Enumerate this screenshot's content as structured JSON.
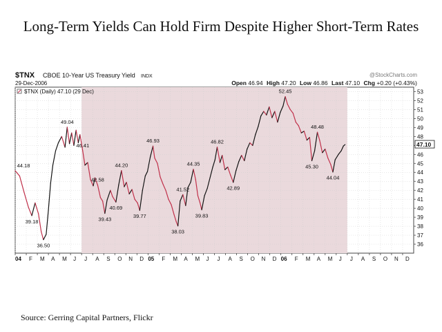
{
  "headline": "Long-Term Yields Can Hold Firm Despite Higher Short-Term Rates",
  "source": "Source: Gerring Capital Partners, Flickr",
  "colors": {
    "shade": "#ead9dc",
    "line_up": "#111111",
    "line_down": "#c0304a",
    "grid": "#cfcfcf"
  },
  "chart_data": {
    "type": "line",
    "symbol": "$TNX",
    "name": "CBOE 10-Year US Treasury Yield",
    "exchange": "INDX",
    "date": "29-Dec-2006",
    "watermark": "@StockCharts.com",
    "quote": {
      "open_label": "Open",
      "open": "46.94",
      "high_label": "High",
      "high": "47.20",
      "low_label": "Low",
      "low": "46.86",
      "last_label": "Last",
      "last": "47.10",
      "chg_label": "Chg",
      "chg": "+0.20 (+0.43%)"
    },
    "legend": "$TNX (Daily) 47.10 (29 Dec)",
    "last_value_tag": "47.10",
    "ylim": [
      35,
      53.5
    ],
    "y_ticks": [
      36,
      37,
      38,
      39,
      40,
      41,
      42,
      43,
      44,
      45,
      46,
      47,
      48,
      49,
      50,
      51,
      52,
      53
    ],
    "x_ticks": [
      "04",
      "F",
      "M",
      "A",
      "M",
      "J",
      "J",
      "A",
      "S",
      "O",
      "N",
      "D",
      "05",
      "F",
      "M",
      "A",
      "M",
      "J",
      "J",
      "A",
      "S",
      "O",
      "N",
      "D",
      "06",
      "F",
      "M",
      "A",
      "M",
      "J",
      "J",
      "A",
      "S",
      "O",
      "N",
      "D"
    ],
    "x_bold": [
      "04",
      "05",
      "06"
    ],
    "shaded_range_months": [
      6,
      30
    ],
    "series": [
      {
        "values": [
          [
            0,
            44.18
          ],
          [
            0.4,
            43.6
          ],
          [
            0.8,
            41.8
          ],
          [
            1.2,
            40.1
          ],
          [
            1.5,
            39.18
          ],
          [
            1.8,
            40.6
          ],
          [
            2.1,
            39.4
          ],
          [
            2.35,
            37.4
          ],
          [
            2.55,
            36.5
          ],
          [
            2.8,
            37.1
          ],
          [
            3.0,
            39.8
          ],
          [
            3.2,
            42.8
          ],
          [
            3.4,
            44.8
          ],
          [
            3.65,
            46.4
          ],
          [
            3.9,
            47.3
          ],
          [
            4.2,
            48.0
          ],
          [
            4.5,
            46.8
          ],
          [
            4.7,
            49.04
          ],
          [
            4.9,
            47.2
          ],
          [
            5.1,
            48.4
          ],
          [
            5.3,
            47.0
          ],
          [
            5.5,
            48.7
          ],
          [
            5.7,
            47.3
          ],
          [
            5.85,
            48.2
          ],
          [
            6.1,
            46.41
          ],
          [
            6.3,
            44.8
          ],
          [
            6.55,
            45.1
          ],
          [
            6.8,
            43.2
          ],
          [
            7.05,
            42.5
          ],
          [
            7.2,
            43.4
          ],
          [
            7.45,
            42.58
          ],
          [
            7.7,
            41.2
          ],
          [
            7.9,
            40.8
          ],
          [
            8.1,
            39.43
          ],
          [
            8.3,
            40.9
          ],
          [
            8.6,
            42.0
          ],
          [
            8.8,
            41.3
          ],
          [
            9.1,
            40.69
          ],
          [
            9.35,
            42.6
          ],
          [
            9.6,
            44.2
          ],
          [
            9.85,
            42.4
          ],
          [
            10.05,
            42.9
          ],
          [
            10.3,
            41.6
          ],
          [
            10.55,
            42.1
          ],
          [
            10.8,
            41.0
          ],
          [
            11.05,
            40.6
          ],
          [
            11.25,
            39.77
          ],
          [
            11.5,
            42.0
          ],
          [
            11.75,
            43.6
          ],
          [
            11.95,
            44.1
          ],
          [
            12.2,
            45.7
          ],
          [
            12.45,
            46.93
          ],
          [
            12.6,
            45.6
          ],
          [
            12.85,
            45.0
          ],
          [
            13.1,
            43.5
          ],
          [
            13.35,
            42.7
          ],
          [
            13.6,
            42.0
          ],
          [
            13.85,
            41.0
          ],
          [
            14.1,
            40.4
          ],
          [
            14.35,
            39.3
          ],
          [
            14.55,
            38.5
          ],
          [
            14.7,
            38.03
          ],
          [
            14.9,
            40.8
          ],
          [
            15.15,
            41.52
          ],
          [
            15.4,
            40.3
          ],
          [
            15.6,
            42.3
          ],
          [
            15.85,
            42.9
          ],
          [
            16.1,
            44.35
          ],
          [
            16.3,
            43.2
          ],
          [
            16.5,
            41.4
          ],
          [
            16.7,
            40.6
          ],
          [
            16.85,
            39.83
          ],
          [
            17.1,
            41.4
          ],
          [
            17.35,
            42.2
          ],
          [
            17.6,
            43.4
          ],
          [
            17.85,
            44.6
          ],
          [
            18.05,
            45.4
          ],
          [
            18.25,
            46.82
          ],
          [
            18.5,
            45.1
          ],
          [
            18.7,
            45.9
          ],
          [
            18.95,
            44.3
          ],
          [
            19.2,
            44.6
          ],
          [
            19.45,
            43.7
          ],
          [
            19.7,
            42.89
          ],
          [
            19.95,
            44.2
          ],
          [
            20.2,
            45.2
          ],
          [
            20.45,
            45.9
          ],
          [
            20.7,
            45.3
          ],
          [
            20.95,
            46.6
          ],
          [
            21.2,
            47.3
          ],
          [
            21.45,
            47.0
          ],
          [
            21.7,
            48.2
          ],
          [
            21.95,
            49.1
          ],
          [
            22.2,
            50.3
          ],
          [
            22.45,
            50.8
          ],
          [
            22.7,
            50.4
          ],
          [
            22.95,
            51.3
          ],
          [
            23.2,
            50.1
          ],
          [
            23.45,
            50.8
          ],
          [
            23.7,
            49.6
          ],
          [
            23.95,
            50.7
          ],
          [
            24.2,
            51.4
          ],
          [
            24.4,
            52.45
          ],
          [
            24.6,
            51.6
          ],
          [
            24.85,
            51.0
          ],
          [
            25.1,
            50.6
          ],
          [
            25.35,
            49.6
          ],
          [
            25.6,
            49.2
          ],
          [
            25.85,
            48.4
          ],
          [
            26.1,
            48.6
          ],
          [
            26.35,
            47.6
          ],
          [
            26.6,
            47.9
          ],
          [
            26.8,
            45.3
          ],
          [
            27.05,
            46.4
          ],
          [
            27.3,
            48.48
          ],
          [
            27.5,
            47.6
          ],
          [
            27.75,
            46.2
          ],
          [
            28.0,
            46.6
          ],
          [
            28.25,
            45.6
          ],
          [
            28.5,
            44.9
          ],
          [
            28.7,
            44.04
          ],
          [
            28.9,
            45.4
          ],
          [
            29.2,
            46.0
          ],
          [
            29.45,
            46.4
          ],
          [
            29.65,
            46.94
          ],
          [
            29.8,
            47.1
          ]
        ]
      }
    ],
    "annotations": [
      {
        "label": "44.18",
        "x": 0,
        "y": 44.18,
        "pos": "above"
      },
      {
        "label": "39.18",
        "x": 1.5,
        "y": 39.18,
        "pos": "below"
      },
      {
        "label": "36.50",
        "x": 2.55,
        "y": 36.5,
        "pos": "below"
      },
      {
        "label": "49.04",
        "x": 4.7,
        "y": 49.04,
        "pos": "above"
      },
      {
        "label": "46.41",
        "x": 6.1,
        "y": 46.41,
        "pos": "above"
      },
      {
        "label": "42.58",
        "x": 7.45,
        "y": 42.58,
        "pos": "above"
      },
      {
        "label": "39.43",
        "x": 8.1,
        "y": 39.43,
        "pos": "below"
      },
      {
        "label": "44.20",
        "x": 9.6,
        "y": 44.2,
        "pos": "above"
      },
      {
        "label": "40.69",
        "x": 9.1,
        "y": 40.69,
        "pos": "below"
      },
      {
        "label": "39.77",
        "x": 11.25,
        "y": 39.77,
        "pos": "below"
      },
      {
        "label": "46.93",
        "x": 12.45,
        "y": 46.93,
        "pos": "above"
      },
      {
        "label": "41.52",
        "x": 15.15,
        "y": 41.52,
        "pos": "above"
      },
      {
        "label": "38.03",
        "x": 14.7,
        "y": 38.03,
        "pos": "below"
      },
      {
        "label": "44.35",
        "x": 16.1,
        "y": 44.35,
        "pos": "above"
      },
      {
        "label": "39.83",
        "x": 16.85,
        "y": 39.83,
        "pos": "below"
      },
      {
        "label": "46.82",
        "x": 18.25,
        "y": 46.82,
        "pos": "above"
      },
      {
        "label": "42.89",
        "x": 19.7,
        "y": 42.89,
        "pos": "below"
      },
      {
        "label": "52.45",
        "x": 24.4,
        "y": 52.45,
        "pos": "above"
      },
      {
        "label": "48.48",
        "x": 27.3,
        "y": 48.48,
        "pos": "above"
      },
      {
        "label": "45.30",
        "x": 26.8,
        "y": 45.3,
        "pos": "below"
      },
      {
        "label": "44.04",
        "x": 28.7,
        "y": 44.04,
        "pos": "below"
      }
    ]
  }
}
